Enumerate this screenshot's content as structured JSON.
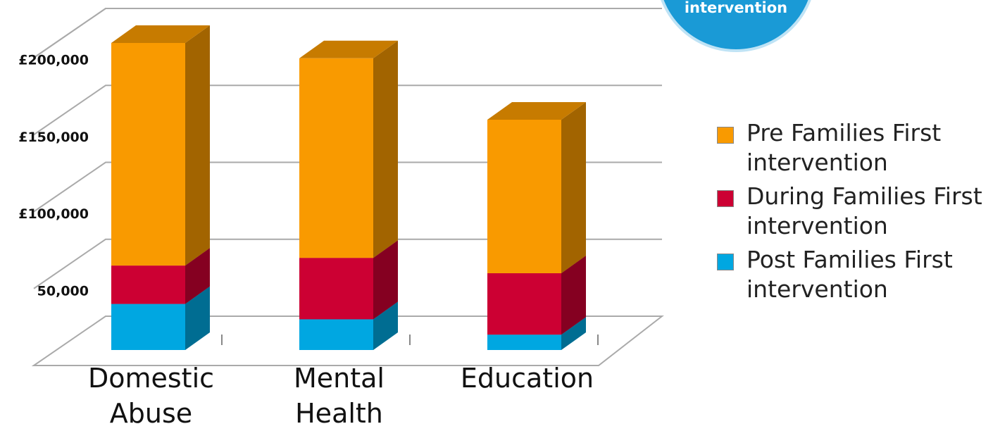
{
  "chart_data": {
    "type": "bar3d-stacked",
    "annotation": "intervention",
    "categories": [
      "Domestic Abuse",
      "Mental Health",
      "Education"
    ],
    "series": [
      {
        "name": "Post Families First intervention",
        "color": "#00a7e1",
        "values": [
          30000,
          20000,
          10000
        ]
      },
      {
        "name": "During Families First intervention",
        "color": "#cc0033",
        "values": [
          25000,
          40000,
          40000
        ]
      },
      {
        "name": "Pre Families First intervention",
        "color": "#f99a00",
        "values": [
          145000,
          130000,
          100000
        ]
      }
    ],
    "ylim": [
      0,
      200000
    ],
    "yticks": [
      {
        "value": 50000,
        "label": "50,000"
      },
      {
        "value": 100000,
        "label": "£100,000"
      },
      {
        "value": 150000,
        "label": "£150,000"
      },
      {
        "value": 200000,
        "label": "£200,000"
      }
    ],
    "grid": true,
    "legend": "right"
  }
}
